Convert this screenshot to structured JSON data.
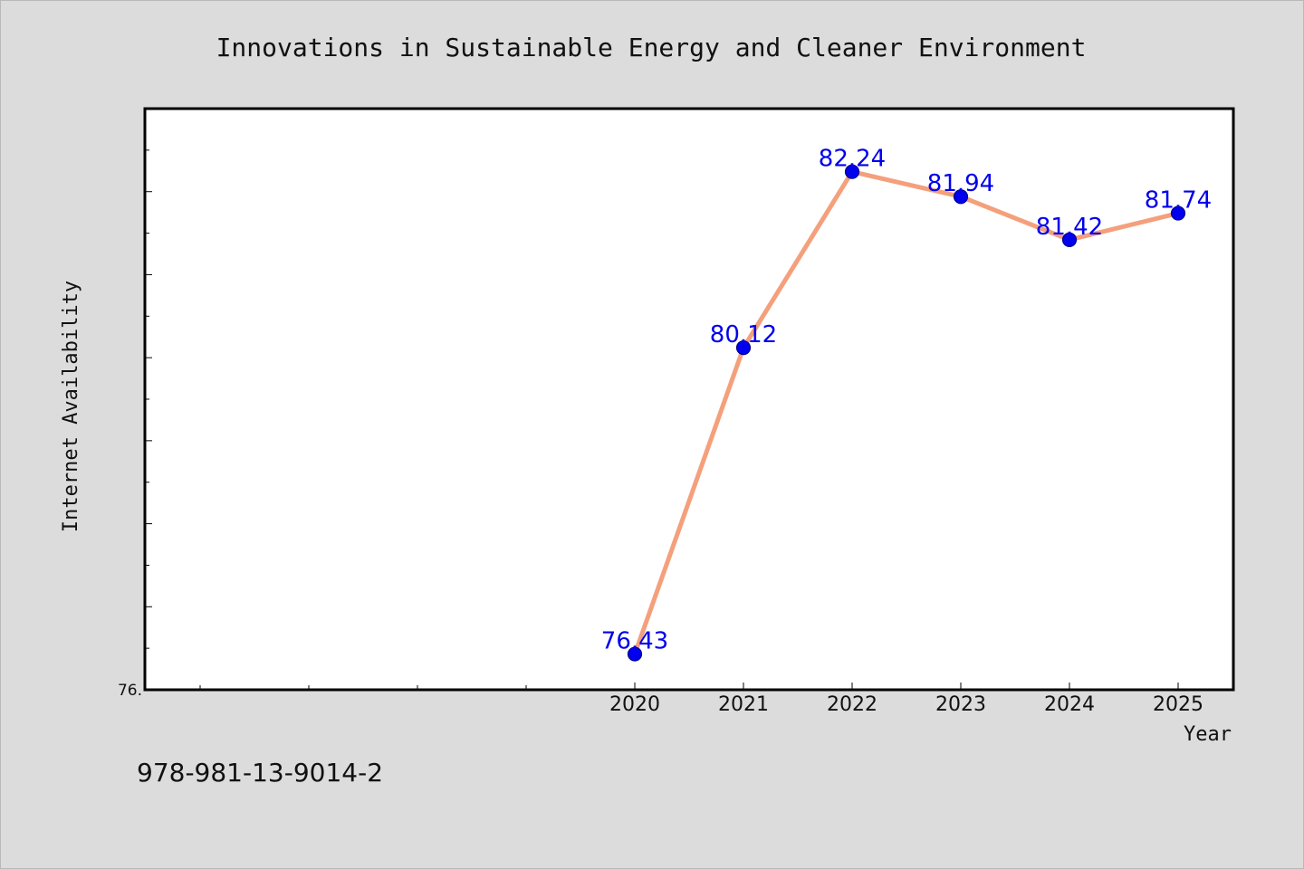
{
  "chart_data": {
    "type": "line",
    "title": "Innovations in Sustainable Energy and Cleaner Environment",
    "xlabel": "Year",
    "ylabel": "Internet Availability",
    "x": [
      "2020",
      "2021",
      "2022",
      "2023",
      "2024",
      "2025"
    ],
    "series": [
      {
        "values": [
          76.43,
          80.12,
          82.24,
          81.94,
          81.42,
          81.74
        ],
        "data_labels": [
          "76.43",
          "80.12",
          "82.24",
          "81.94",
          "81.42",
          "81.74"
        ]
      }
    ],
    "ylim": [
      76,
      83
    ],
    "y_axis_label_shown": "76.",
    "grid": false,
    "legend": "none",
    "colors": {
      "line": "#f4a07c",
      "marker": "#0000ee",
      "marker_edge": "#00008b",
      "data_label": "#0000ee",
      "plot_background": "#ffffff",
      "figure_background": "#dcdcdc"
    }
  },
  "footer": {
    "isbn": "978-981-13-9014-2"
  }
}
